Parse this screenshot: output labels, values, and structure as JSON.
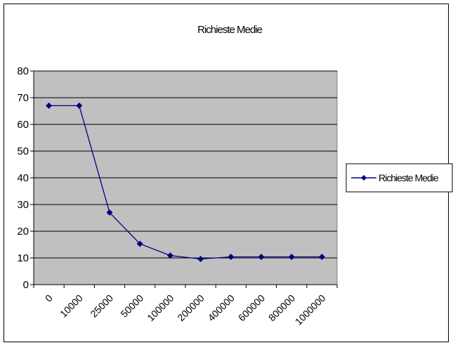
{
  "chart_data": {
    "type": "line",
    "title": "Richieste Medie",
    "categories": [
      "0",
      "10000",
      "25000",
      "50000",
      "100000",
      "200000",
      "400000",
      "600000",
      "800000",
      "1000000"
    ],
    "series": [
      {
        "name": "Richieste Medie",
        "values": [
          67,
          67,
          27,
          15.3,
          10.9,
          9.6,
          10.4,
          10.4,
          10.4,
          10.4
        ]
      }
    ],
    "xlabel": "",
    "ylabel": "",
    "ylim": [
      0,
      80
    ],
    "yticks": [
      "0",
      "10",
      "20",
      "30",
      "40",
      "50",
      "60",
      "70",
      "80"
    ],
    "grid": true,
    "legend_position": "right",
    "colors": {
      "series": "#000080",
      "plot_background": "#c0c0c0",
      "gridline": "#000000",
      "frame": "#000000"
    }
  }
}
